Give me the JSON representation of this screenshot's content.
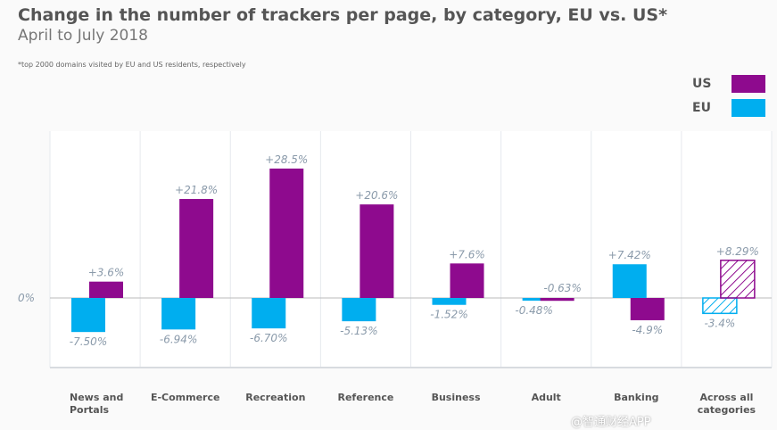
{
  "chart_data": {
    "type": "bar",
    "title": "Change in the number of trackers per page, by category, EU vs. US*",
    "subtitle": "April to July 2018",
    "note": "*top 2000 domains visited by EU and US residents, respectively",
    "categories": [
      "News and Portals",
      "E-Commerce",
      "Recreation",
      "Reference",
      "Business",
      "Adult",
      "Banking",
      "Across all categories"
    ],
    "series": [
      {
        "name": "EU",
        "color": "#00aeef",
        "values": [
          -7.5,
          -6.94,
          -6.7,
          -5.13,
          -1.52,
          -0.48,
          7.42,
          -3.4
        ],
        "labels": [
          "-7.50%",
          "-6.94%",
          "-6.70%",
          "-5.13%",
          "-1.52%",
          "-0.48%",
          "+7.42%",
          "-3.4%"
        ]
      },
      {
        "name": "US",
        "color": "#8e0a8e",
        "values": [
          3.6,
          21.8,
          28.5,
          20.6,
          7.6,
          -0.63,
          -4.9,
          8.29
        ],
        "labels": [
          "+3.6%",
          "+21.8%",
          "+28.5%",
          "+20.6%",
          "+7.6%",
          "-0.63%",
          "-4.9%",
          "+8.29%"
        ]
      }
    ],
    "hatched_category": "Across all categories",
    "zero_label": "0%",
    "ylim": [
      -15,
      37
    ]
  },
  "watermark": "@智通财经APP"
}
